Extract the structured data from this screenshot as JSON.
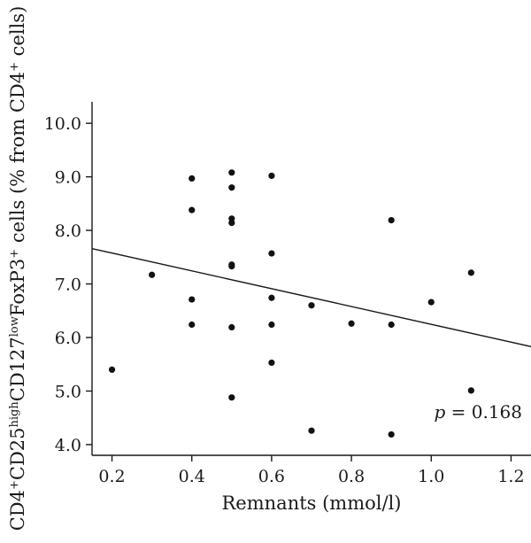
{
  "chart_data": {
    "type": "scatter",
    "xlabel": "Remnants (mmol/l)",
    "ylabel_parts": {
      "a": "CD4",
      "a_sup": "+",
      "b": "CD25",
      "b_sup": "high",
      "c": "CD127",
      "c_sup": "low",
      "d": "FoxP3",
      "d_sup": "+",
      "e": " cells (% from CD4",
      "e_sup": "+",
      "f": " cells)"
    },
    "xlim": [
      0.15,
      1.25
    ],
    "ylim": [
      3.8,
      10.4
    ],
    "x_ticks": [
      0.2,
      0.4,
      0.6,
      0.8,
      1.0,
      1.2
    ],
    "x_tick_labels": [
      "0.2",
      "0.4",
      "0.6",
      "0.8",
      "1.0",
      "1.2"
    ],
    "y_ticks": [
      4.0,
      5.0,
      6.0,
      7.0,
      8.0,
      9.0,
      10.0
    ],
    "y_tick_labels": [
      "4.0",
      "5.0",
      "6.0",
      "7.0",
      "8.0",
      "9.0",
      "10.0"
    ],
    "grid": false,
    "points": [
      {
        "x": 0.2,
        "y": 5.4
      },
      {
        "x": 0.3,
        "y": 7.17
      },
      {
        "x": 0.4,
        "y": 8.97
      },
      {
        "x": 0.4,
        "y": 8.38
      },
      {
        "x": 0.4,
        "y": 6.71
      },
      {
        "x": 0.4,
        "y": 6.24
      },
      {
        "x": 0.5,
        "y": 9.08
      },
      {
        "x": 0.5,
        "y": 8.8
      },
      {
        "x": 0.5,
        "y": 8.22
      },
      {
        "x": 0.5,
        "y": 8.14
      },
      {
        "x": 0.5,
        "y": 7.36
      },
      {
        "x": 0.5,
        "y": 7.33
      },
      {
        "x": 0.5,
        "y": 6.19
      },
      {
        "x": 0.5,
        "y": 4.88
      },
      {
        "x": 0.6,
        "y": 9.02
      },
      {
        "x": 0.6,
        "y": 7.57
      },
      {
        "x": 0.6,
        "y": 6.74
      },
      {
        "x": 0.6,
        "y": 6.24
      },
      {
        "x": 0.6,
        "y": 5.53
      },
      {
        "x": 0.7,
        "y": 6.6
      },
      {
        "x": 0.7,
        "y": 4.26
      },
      {
        "x": 0.8,
        "y": 6.26
      },
      {
        "x": 0.9,
        "y": 8.19
      },
      {
        "x": 0.9,
        "y": 6.24
      },
      {
        "x": 0.9,
        "y": 4.19
      },
      {
        "x": 1.0,
        "y": 6.66
      },
      {
        "x": 1.1,
        "y": 7.21
      },
      {
        "x": 1.1,
        "y": 5.01
      }
    ],
    "trendline": {
      "x": [
        0.15,
        1.25
      ],
      "y": [
        7.66,
        5.83
      ]
    },
    "annotation": {
      "italic": "p",
      "text": " = 0.168"
    }
  }
}
